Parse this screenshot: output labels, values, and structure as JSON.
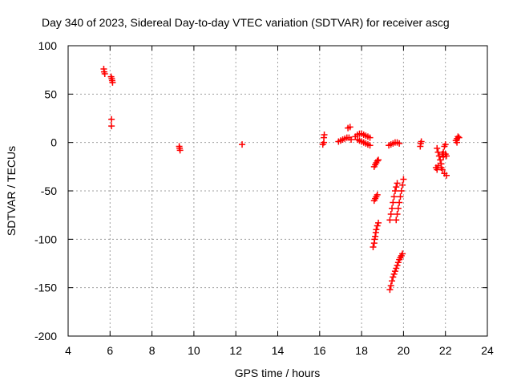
{
  "chart_data": {
    "type": "scatter",
    "title": "Day 340 of 2023, Sidereal Day-to-day VTEC variation (SDTVAR) for receiver ascg",
    "xlabel": "GPS time / hours",
    "ylabel": "SDTVAR / TECUs",
    "xlim": [
      4,
      24
    ],
    "ylim": [
      -200,
      100
    ],
    "xticks": [
      4,
      6,
      8,
      10,
      12,
      14,
      16,
      18,
      20,
      22,
      24
    ],
    "yticks": [
      -200,
      -150,
      -100,
      -50,
      0,
      50,
      100
    ],
    "grid": true,
    "marker": "+",
    "color": "#ff0000",
    "series": [
      {
        "name": "SDTVAR",
        "points": [
          [
            5.7,
            76
          ],
          [
            5.72,
            73
          ],
          [
            5.75,
            71
          ],
          [
            6.05,
            68
          ],
          [
            6.08,
            66
          ],
          [
            6.1,
            64
          ],
          [
            6.12,
            62
          ],
          [
            6.07,
            24
          ],
          [
            6.07,
            17
          ],
          [
            9.3,
            -4
          ],
          [
            9.32,
            -6
          ],
          [
            9.34,
            -8
          ],
          [
            12.3,
            -2
          ],
          [
            16.15,
            -2
          ],
          [
            16.2,
            0
          ],
          [
            16.2,
            5
          ],
          [
            16.22,
            8
          ],
          [
            16.9,
            1
          ],
          [
            17.0,
            2
          ],
          [
            17.1,
            3
          ],
          [
            17.2,
            4
          ],
          [
            17.3,
            5
          ],
          [
            17.4,
            5
          ],
          [
            17.35,
            15
          ],
          [
            17.45,
            16
          ],
          [
            17.5,
            3
          ],
          [
            17.7,
            6
          ],
          [
            17.8,
            8
          ],
          [
            17.9,
            9
          ],
          [
            18.0,
            9
          ],
          [
            18.1,
            8
          ],
          [
            18.2,
            7
          ],
          [
            18.3,
            6
          ],
          [
            18.4,
            5
          ],
          [
            17.8,
            3
          ],
          [
            17.9,
            2
          ],
          [
            18.0,
            1
          ],
          [
            18.1,
            0
          ],
          [
            18.2,
            -1
          ],
          [
            18.3,
            -2
          ],
          [
            18.4,
            -3
          ],
          [
            18.6,
            -25
          ],
          [
            18.65,
            -23
          ],
          [
            18.7,
            -21
          ],
          [
            18.75,
            -19
          ],
          [
            18.8,
            -18
          ],
          [
            18.6,
            -60
          ],
          [
            18.65,
            -58
          ],
          [
            18.7,
            -56
          ],
          [
            18.75,
            -54
          ],
          [
            18.55,
            -108
          ],
          [
            18.6,
            -104
          ],
          [
            18.62,
            -100
          ],
          [
            18.65,
            -97
          ],
          [
            18.68,
            -93
          ],
          [
            18.7,
            -90
          ],
          [
            18.75,
            -86
          ],
          [
            18.8,
            -83
          ],
          [
            19.3,
            -3
          ],
          [
            19.4,
            -2
          ],
          [
            19.5,
            -1
          ],
          [
            19.6,
            0
          ],
          [
            19.7,
            0
          ],
          [
            19.8,
            -1
          ],
          [
            19.35,
            -80
          ],
          [
            19.4,
            -74
          ],
          [
            19.45,
            -68
          ],
          [
            19.5,
            -62
          ],
          [
            19.55,
            -56
          ],
          [
            19.6,
            -50
          ],
          [
            19.65,
            -46
          ],
          [
            19.7,
            -42
          ],
          [
            19.65,
            -80
          ],
          [
            19.7,
            -74
          ],
          [
            19.75,
            -68
          ],
          [
            19.8,
            -62
          ],
          [
            19.85,
            -56
          ],
          [
            19.9,
            -50
          ],
          [
            19.95,
            -44
          ],
          [
            20.0,
            -38
          ],
          [
            19.35,
            -152
          ],
          [
            19.4,
            -148
          ],
          [
            19.45,
            -143
          ],
          [
            19.5,
            -139
          ],
          [
            19.55,
            -136
          ],
          [
            19.6,
            -133
          ],
          [
            19.65,
            -130
          ],
          [
            19.7,
            -127
          ],
          [
            19.75,
            -124
          ],
          [
            19.8,
            -121
          ],
          [
            19.85,
            -119
          ],
          [
            19.9,
            -117
          ],
          [
            19.95,
            -115
          ],
          [
            20.8,
            -4
          ],
          [
            20.82,
            -1
          ],
          [
            20.85,
            1
          ],
          [
            21.6,
            -6
          ],
          [
            21.65,
            -10
          ],
          [
            21.7,
            -14
          ],
          [
            21.75,
            -18
          ],
          [
            21.8,
            -22
          ],
          [
            21.85,
            -12
          ],
          [
            21.9,
            -15
          ],
          [
            21.95,
            -4
          ],
          [
            21.55,
            -26
          ],
          [
            21.6,
            -28
          ],
          [
            21.65,
            -24
          ],
          [
            21.8,
            -26
          ],
          [
            21.85,
            -28
          ],
          [
            21.9,
            -10
          ],
          [
            22.0,
            -12
          ],
          [
            22.05,
            -14
          ],
          [
            22.0,
            -2
          ],
          [
            21.95,
            -32
          ],
          [
            22.05,
            -34
          ],
          [
            22.5,
            2
          ],
          [
            22.55,
            4
          ],
          [
            22.6,
            6
          ],
          [
            22.65,
            5
          ],
          [
            22.55,
            0
          ]
        ]
      }
    ]
  }
}
